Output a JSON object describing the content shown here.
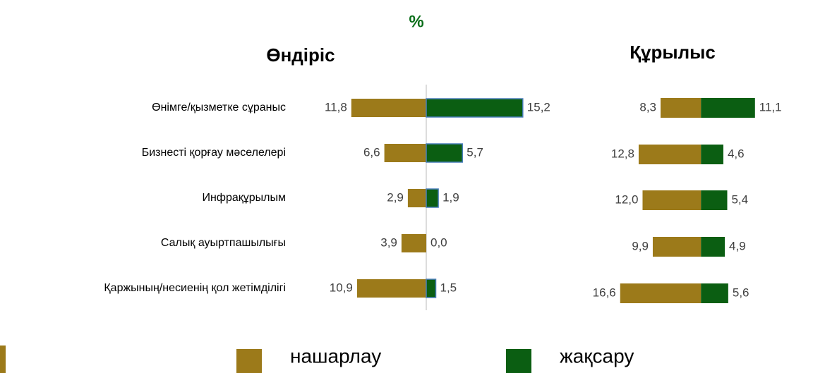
{
  "title": "%",
  "chart_data": [
    {
      "type": "bar",
      "orientation": "diverging",
      "title": "Өндіріс",
      "categories": [
        "Өнімге/қызметке сұраныс",
        "Бизнесті қорғау мәселелері",
        "Инфрақұрылым",
        "Салық ауыртпашылығы",
        "Қаржының/несиенің қол жетімділігі"
      ],
      "xlim": [
        -12,
        16
      ],
      "series": [
        {
          "name": "нашарлау",
          "color": "#9c7a1a",
          "direction": "left",
          "values": [
            11.8,
            6.6,
            2.9,
            3.9,
            10.9
          ],
          "value_labels": [
            "11,8",
            "6,6",
            "2,9",
            "3,9",
            "10,9"
          ]
        },
        {
          "name": "жақсару",
          "color": "#0b5e12",
          "outline": "#4a7ebb",
          "direction": "right",
          "values": [
            15.2,
            5.7,
            1.9,
            0.0,
            1.5
          ],
          "value_labels": [
            "15,2",
            "5,7",
            "1,9",
            "0,0",
            "1,5"
          ]
        }
      ]
    },
    {
      "type": "bar",
      "orientation": "diverging",
      "title": "Құрылыс",
      "xlim": [
        -17,
        12
      ],
      "series": [
        {
          "color": "#9c7a1a",
          "direction": "left",
          "values": [
            8.3,
            12.8,
            12.0,
            9.9,
            16.6
          ],
          "value_labels": [
            "8,3",
            "12,8",
            "12,0",
            "9,9",
            "16,6"
          ]
        },
        {
          "color": "#0b5e12",
          "direction": "right",
          "values": [
            11.1,
            4.6,
            5.4,
            4.9,
            5.6
          ],
          "value_labels": [
            "11,1",
            "4,6",
            "5,4",
            "4,9",
            "5,6"
          ]
        }
      ]
    }
  ]
}
